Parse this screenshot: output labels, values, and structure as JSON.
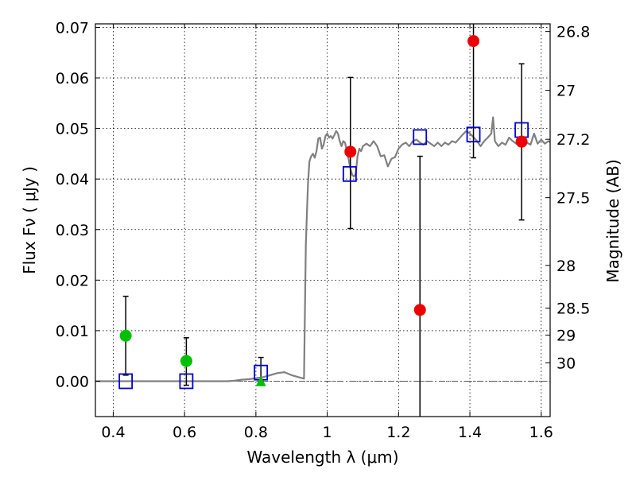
{
  "chart_data": {
    "type": "scatter",
    "xlabel": "Wavelength  λ (μm)",
    "ylabel": "Flux  Fν  ( μJy )",
    "y2label": "Magnitude (AB)",
    "xlim": [
      0.35,
      1.625
    ],
    "ylim": [
      -0.007,
      0.0707
    ],
    "grid": true,
    "x_ticks": [
      {
        "value": 0.4,
        "label": "0.4"
      },
      {
        "value": 0.6,
        "label": "0.6"
      },
      {
        "value": 0.8,
        "label": "0.8"
      },
      {
        "value": 1.0,
        "label": "1"
      },
      {
        "value": 1.2,
        "label": "1.2"
      },
      {
        "value": 1.4,
        "label": "1.4"
      },
      {
        "value": 1.6,
        "label": "1.6"
      }
    ],
    "y_ticks": [
      {
        "value": 0.0,
        "label": "0.00"
      },
      {
        "value": 0.01,
        "label": "0.01"
      },
      {
        "value": 0.02,
        "label": "0.02"
      },
      {
        "value": 0.03,
        "label": "0.03"
      },
      {
        "value": 0.04,
        "label": "0.04"
      },
      {
        "value": 0.05,
        "label": "0.05"
      },
      {
        "value": 0.06,
        "label": "0.06"
      },
      {
        "value": 0.07,
        "label": "0.07"
      }
    ],
    "mag_ticks": [
      {
        "value": 26.8,
        "label": "26.8"
      },
      {
        "value": 27.0,
        "label": "27"
      },
      {
        "value": 27.2,
        "label": "27.2"
      },
      {
        "value": 27.5,
        "label": "27.5"
      },
      {
        "value": 28.0,
        "label": "28"
      },
      {
        "value": 28.5,
        "label": "28.5"
      },
      {
        "value": 29.0,
        "label": "29"
      },
      {
        "value": 30.0,
        "label": "30"
      }
    ],
    "model_spectrum": {
      "color": "#808080",
      "x": [
        0.35,
        0.45,
        0.55,
        0.65,
        0.72,
        0.74,
        0.76,
        0.78,
        0.8,
        0.82,
        0.84,
        0.86,
        0.88,
        0.9,
        0.92,
        0.935,
        0.94,
        0.943,
        0.946,
        0.95,
        0.955,
        0.96,
        0.965,
        0.97,
        0.975,
        0.98,
        0.985,
        0.99,
        0.995,
        1.0,
        1.005,
        1.01,
        1.015,
        1.02,
        1.025,
        1.03,
        1.035,
        1.04,
        1.045,
        1.05,
        1.055,
        1.06,
        1.065,
        1.07,
        1.075,
        1.08,
        1.085,
        1.09,
        1.095,
        1.1,
        1.11,
        1.12,
        1.13,
        1.14,
        1.15,
        1.16,
        1.17,
        1.18,
        1.19,
        1.2,
        1.21,
        1.22,
        1.23,
        1.24,
        1.25,
        1.26,
        1.27,
        1.28,
        1.29,
        1.3,
        1.31,
        1.32,
        1.33,
        1.34,
        1.35,
        1.36,
        1.37,
        1.38,
        1.39,
        1.4,
        1.41,
        1.42,
        1.43,
        1.44,
        1.45,
        1.46,
        1.465,
        1.47,
        1.48,
        1.49,
        1.5,
        1.51,
        1.52,
        1.53,
        1.54,
        1.55,
        1.56,
        1.57,
        1.58,
        1.59,
        1.6,
        1.61,
        1.62,
        1.625
      ],
      "y": [
        0.0,
        0.0,
        0.0,
        0.0,
        0.0,
        0.0001,
        0.0003,
        0.0004,
        0.0006,
        0.0008,
        0.0012,
        0.0016,
        0.0018,
        0.0012,
        0.0008,
        0.0005,
        0.027,
        0.033,
        0.039,
        0.0435,
        0.0445,
        0.045,
        0.0442,
        0.0455,
        0.048,
        0.0482,
        0.046,
        0.0468,
        0.0485,
        0.049,
        0.0482,
        0.0485,
        0.048,
        0.0487,
        0.0495,
        0.049,
        0.0475,
        0.0465,
        0.0475,
        0.0472,
        0.0455,
        0.044,
        0.042,
        0.0408,
        0.0405,
        0.041,
        0.0445,
        0.046,
        0.0455,
        0.0465,
        0.047,
        0.0465,
        0.0475,
        0.0465,
        0.0445,
        0.0447,
        0.0425,
        0.044,
        0.0443,
        0.046,
        0.0468,
        0.0472,
        0.0465,
        0.0475,
        0.0478,
        0.0472,
        0.0468,
        0.0475,
        0.047,
        0.0465,
        0.0472,
        0.0465,
        0.0472,
        0.0468,
        0.0475,
        0.0472,
        0.048,
        0.0488,
        0.0495,
        0.049,
        0.0483,
        0.0475,
        0.0465,
        0.0475,
        0.0482,
        0.049,
        0.0522,
        0.0475,
        0.0465,
        0.0472,
        0.0468,
        0.0482,
        0.0475,
        0.047,
        0.0468,
        0.0465,
        0.0472,
        0.0468,
        0.049,
        0.047,
        0.0478,
        0.047,
        0.0475,
        0.0473
      ]
    },
    "series": [
      {
        "name": "",
        "color": "#0000d0",
        "marker": "square-open",
        "points": [
          {
            "x": 0.435,
            "y": 0.0
          },
          {
            "x": 0.605,
            "y": 0.0
          },
          {
            "x": 0.814,
            "y": 0.0017
          },
          {
            "x": 1.063,
            "y": 0.041
          },
          {
            "x": 1.26,
            "y": 0.0483
          },
          {
            "x": 1.41,
            "y": 0.0488
          },
          {
            "x": 1.545,
            "y": 0.0497
          }
        ]
      },
      {
        "name": "",
        "color": "#00c000",
        "marker": "circle",
        "points": [
          {
            "x": 0.435,
            "y": 0.009,
            "yerr_low": 0.0012,
            "yerr_high": 0.0168
          },
          {
            "x": 0.605,
            "y": 0.004,
            "yerr_low": -0.0008,
            "yerr_high": 0.0086
          }
        ]
      },
      {
        "name": "",
        "color": "#00c000",
        "marker": "triangle",
        "points": [
          {
            "x": 0.814,
            "y": -0.0002,
            "yerr_low": 0.0,
            "yerr_high": 0.0047
          }
        ]
      },
      {
        "name": "",
        "color": "#ee0000",
        "marker": "circle",
        "points": [
          {
            "x": 1.065,
            "y": 0.0454,
            "yerr_low": 0.0302,
            "yerr_high": 0.0601
          },
          {
            "x": 1.26,
            "y": 0.0141,
            "yerr_low": -0.0075,
            "yerr_high": 0.0445
          },
          {
            "x": 1.41,
            "y": 0.0673,
            "yerr_low": 0.0442,
            "yerr_high": 0.0715
          },
          {
            "x": 1.545,
            "y": 0.0474,
            "yerr_low": 0.0319,
            "yerr_high": 0.0628
          }
        ]
      }
    ]
  }
}
